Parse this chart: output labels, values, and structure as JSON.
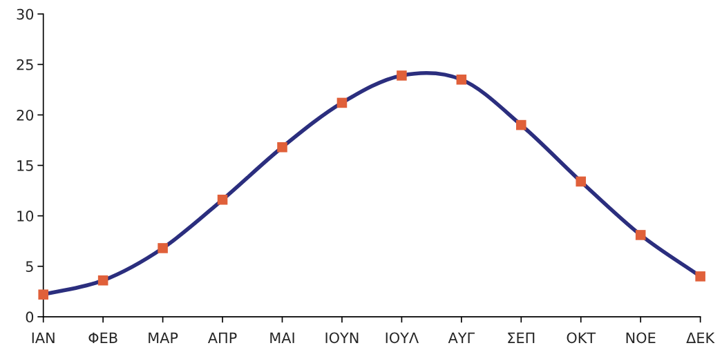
{
  "chart_data": {
    "type": "line",
    "categories": [
      "ΙΑΝ",
      "ΦΕΒ",
      "ΜΑΡ",
      "ΑΠΡ",
      "ΜΑΙ",
      "ΙΟΥΝ",
      "ΙΟΥΛ",
      "ΑΥΓ",
      "ΣΕΠ",
      "ΟΚΤ",
      "ΝΟΕ",
      "ΔΕΚ"
    ],
    "series": [
      {
        "color": "#2b2e7e",
        "colors": [
          "#e0603a",
          "#e0603a",
          "#e0603a",
          "#e0603a",
          "#e0603a",
          "#e0603a",
          "#e0603a",
          "#e0603a",
          "#e0603a",
          "#e0603a",
          "#e0603a",
          "#e0603a"
        ],
        "values": [
          2.2,
          3.6,
          6.8,
          11.6,
          16.8,
          21.2,
          23.9,
          23.5,
          19.0,
          13.4,
          8.1,
          4.0
        ]
      }
    ],
    "ylim": [
      0,
      30
    ],
    "yticks": [
      0,
      5,
      10,
      15,
      20,
      25,
      30
    ],
    "marker": "square",
    "line_style": "solid",
    "grid": false,
    "legend": false
  }
}
